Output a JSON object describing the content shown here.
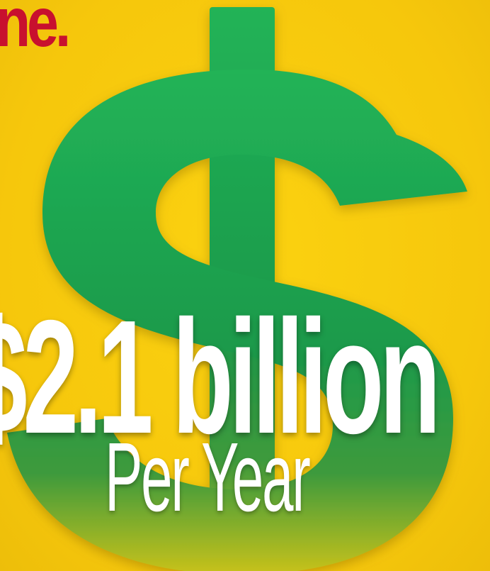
{
  "headline_fragment": "ne.",
  "amount_text": "$2.1 billion",
  "period_text": "Per Year",
  "colors": {
    "background": "#F7C80E",
    "dollar_sign": "#1F9D4E",
    "headline": "#C8102E",
    "text": "#FFFFFF"
  },
  "icons": {
    "dollar_sign": "dollar-sign-icon"
  }
}
